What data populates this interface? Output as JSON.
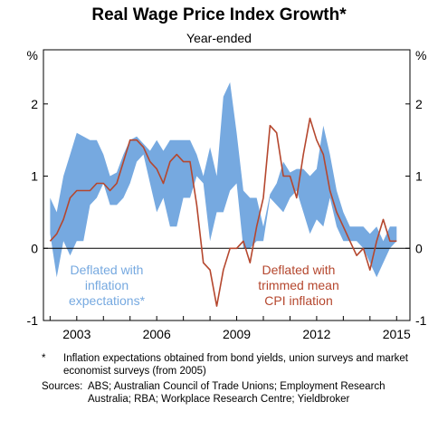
{
  "chart_data": {
    "type": "area",
    "title": "Real Wage Price Index Growth*",
    "subtitle": "Year-ended",
    "left_unit": "%",
    "right_unit": "%",
    "ylim": [
      -1,
      2.75
    ],
    "yticks": [
      -1,
      0,
      1,
      2
    ],
    "ytick_labels": [
      "-1",
      "0",
      "1",
      "2"
    ],
    "xlim": [
      2001.75,
      2015.5
    ],
    "xticks": [
      2003,
      2006,
      2009,
      2012,
      2015
    ],
    "xtick_labels": [
      "2003",
      "2006",
      "2009",
      "2012",
      "2015"
    ],
    "grid": false,
    "series": [
      {
        "name": "Deflated with inflation expectations*",
        "kind": "band",
        "color": "#76a9e0",
        "x": [
          2002.0,
          2002.25,
          2002.5,
          2002.75,
          2003.0,
          2003.25,
          2003.5,
          2003.75,
          2004.0,
          2004.25,
          2004.5,
          2004.75,
          2005.0,
          2005.25,
          2005.5,
          2005.75,
          2006.0,
          2006.25,
          2006.5,
          2006.75,
          2007.0,
          2007.25,
          2007.5,
          2007.75,
          2008.0,
          2008.25,
          2008.5,
          2008.75,
          2009.0,
          2009.25,
          2009.5,
          2009.75,
          2010.0,
          2010.25,
          2010.5,
          2010.75,
          2011.0,
          2011.25,
          2011.5,
          2011.75,
          2012.0,
          2012.25,
          2012.5,
          2012.75,
          2013.0,
          2013.25,
          2013.5,
          2013.75,
          2014.0,
          2014.25,
          2014.5,
          2014.75,
          2015.0
        ],
        "upper": [
          0.7,
          0.5,
          1.0,
          1.3,
          1.6,
          1.55,
          1.5,
          1.5,
          1.3,
          1.0,
          1.05,
          1.3,
          1.5,
          1.55,
          1.45,
          1.35,
          1.5,
          1.35,
          1.5,
          1.5,
          1.5,
          1.5,
          1.3,
          1.0,
          1.4,
          1.0,
          2.1,
          2.3,
          1.6,
          0.8,
          0.7,
          0.7,
          0.3,
          0.75,
          0.9,
          1.2,
          1.05,
          1.1,
          1.1,
          1.0,
          1.1,
          1.7,
          1.3,
          0.8,
          0.5,
          0.3,
          0.3,
          0.3,
          0.2,
          0.3,
          0.1,
          0.3,
          0.3
        ],
        "lower": [
          0.2,
          -0.4,
          0.1,
          -0.1,
          0.1,
          0.1,
          0.6,
          0.7,
          0.9,
          0.6,
          0.6,
          0.7,
          0.9,
          1.2,
          1.3,
          0.9,
          0.5,
          0.7,
          0.3,
          0.3,
          0.7,
          0.7,
          1.0,
          0.9,
          0.1,
          0.5,
          0.5,
          0.8,
          0.9,
          0.0,
          0.0,
          0.1,
          0.1,
          0.7,
          0.6,
          0.5,
          0.7,
          0.8,
          0.5,
          0.2,
          0.4,
          0.3,
          0.7,
          0.3,
          0.1,
          0.1,
          0.1,
          0.0,
          -0.2,
          -0.4,
          -0.2,
          0.0,
          0.1
        ]
      },
      {
        "name": "Deflated with trimmed mean CPI inflation",
        "kind": "line",
        "color": "#b5472e",
        "x": [
          2002.0,
          2002.25,
          2002.5,
          2002.75,
          2003.0,
          2003.25,
          2003.5,
          2003.75,
          2004.0,
          2004.25,
          2004.5,
          2004.75,
          2005.0,
          2005.25,
          2005.5,
          2005.75,
          2006.0,
          2006.25,
          2006.5,
          2006.75,
          2007.0,
          2007.25,
          2007.5,
          2007.75,
          2008.0,
          2008.25,
          2008.5,
          2008.75,
          2009.0,
          2009.25,
          2009.5,
          2009.75,
          2010.0,
          2010.25,
          2010.5,
          2010.75,
          2011.0,
          2011.25,
          2011.5,
          2011.75,
          2012.0,
          2012.25,
          2012.5,
          2012.75,
          2013.0,
          2013.25,
          2013.5,
          2013.75,
          2014.0,
          2014.25,
          2014.5,
          2014.75,
          2015.0
        ],
        "values": [
          0.1,
          0.2,
          0.4,
          0.7,
          0.8,
          0.8,
          0.8,
          0.9,
          0.9,
          0.8,
          0.9,
          1.2,
          1.5,
          1.5,
          1.4,
          1.2,
          1.1,
          0.9,
          1.2,
          1.3,
          1.2,
          1.2,
          0.6,
          -0.2,
          -0.3,
          -0.8,
          -0.3,
          0.0,
          0.0,
          0.1,
          -0.2,
          0.3,
          0.7,
          1.7,
          1.6,
          1.0,
          1.0,
          0.7,
          1.3,
          1.8,
          1.5,
          1.3,
          0.8,
          0.5,
          0.3,
          0.1,
          -0.1,
          0.0,
          -0.3,
          0.1,
          0.4,
          0.1,
          0.1
        ]
      }
    ],
    "annotations": {
      "band_label": [
        "Deflated with",
        "inflation",
        "expectations*"
      ],
      "line_label": [
        "Deflated with",
        "trimmed mean",
        "CPI inflation"
      ]
    }
  },
  "footnotes": {
    "marker": "*",
    "note": "Inflation expectations obtained from bond yields, union surveys and market economist surveys (from 2005)",
    "sources_label": "Sources:",
    "sources": "ABS; Australian Council of Trade Unions; Employment Research Australia; RBA; Workplace Research Centre; Yieldbroker"
  }
}
